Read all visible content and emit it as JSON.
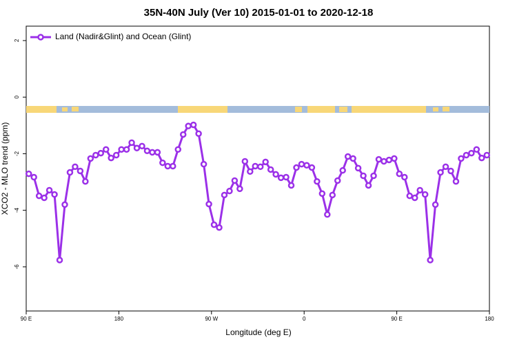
{
  "chart_data": {
    "type": "line",
    "title": "35N-40N July (Ver 10)   2015-01-01 to 2020-12-18",
    "x_label": "Longitude (deg E)",
    "y_label": "XCO2 - MLO trend (ppm)",
    "x": [
      92.5,
      97.5,
      102.5,
      107.5,
      112.5,
      117.5,
      122.5,
      127.5,
      132.5,
      137.5,
      142.5,
      147.5,
      152.5,
      157.5,
      162.5,
      167.5,
      172.5,
      177.5,
      182.5,
      187.5,
      192.5,
      197.5,
      202.5,
      207.5,
      212.5,
      217.5,
      222.5,
      227.5,
      232.5,
      237.5,
      242.5,
      247.5,
      252.5,
      257.5,
      262.5,
      267.5,
      272.5,
      277.5,
      282.5,
      287.5,
      292.5,
      297.5,
      302.5,
      307.5,
      312.5,
      317.5,
      322.5,
      327.5,
      332.5,
      337.5,
      342.5,
      347.5,
      352.5,
      357.5,
      362.5,
      367.5,
      372.5,
      377.5,
      382.5,
      387.5,
      392.5,
      397.5,
      402.5,
      407.5,
      412.5,
      417.5,
      422.5,
      427.5,
      432.5,
      437.5,
      442.5,
      447.5,
      452.5,
      457.5,
      462.5,
      467.5,
      472.5,
      477.5,
      482.5,
      487.5,
      492.5,
      497.5,
      502.5,
      507.5,
      512.5,
      517.5,
      522.5,
      527.5,
      532.5,
      537.5
    ],
    "series": [
      {
        "name": "Land (Nadir&Glint) and Ocean (Glint)",
        "color": "#9b30e8",
        "values": [
          -2.71,
          -2.83,
          -3.49,
          -3.56,
          -3.29,
          -3.44,
          -5.76,
          -3.8,
          -2.66,
          -2.46,
          -2.61,
          -2.98,
          -2.17,
          -2.05,
          -1.98,
          -1.85,
          -2.15,
          -2.05,
          -1.85,
          -1.85,
          -1.61,
          -1.8,
          -1.73,
          -1.9,
          -1.95,
          -1.95,
          -2.32,
          -2.44,
          -2.44,
          -1.85,
          -1.32,
          -1.02,
          -0.98,
          -1.29,
          -2.37,
          -3.78,
          -4.51,
          -4.61,
          -3.46,
          -3.32,
          -2.95,
          -3.24,
          -2.27,
          -2.63,
          -2.44,
          -2.46,
          -2.29,
          -2.56,
          -2.73,
          -2.85,
          -2.83,
          -3.12,
          -2.49,
          -2.37,
          -2.41,
          -2.49,
          -2.98,
          -3.41,
          -4.15,
          -3.46,
          -2.95,
          -2.59,
          -2.1,
          -2.17,
          -2.51,
          -2.78,
          -3.12,
          -2.78,
          -2.2,
          -2.27,
          -2.22,
          -2.17,
          -2.71,
          -2.83,
          -3.49,
          -3.56,
          -3.29,
          -3.44,
          -5.76,
          -3.8,
          -2.66,
          -2.46,
          -2.61,
          -2.98,
          -2.17,
          -2.05,
          -1.98,
          -1.85,
          -2.15,
          -2.05
        ]
      }
    ],
    "xlim": [
      90,
      540
    ],
    "ylim": [
      -7.56,
      2.51
    ],
    "xticks": [
      {
        "value": 90,
        "label": "90 E"
      },
      180,
      {
        "value": 270,
        "label": "90 W"
      },
      {
        "value": 360,
        "label": "0"
      },
      {
        "value": 450,
        "label": "90 E"
      },
      {
        "value": 540,
        "label": "180"
      }
    ],
    "yticks": [
      2,
      0,
      -2,
      -4,
      -6
    ],
    "legend": "top-left"
  }
}
